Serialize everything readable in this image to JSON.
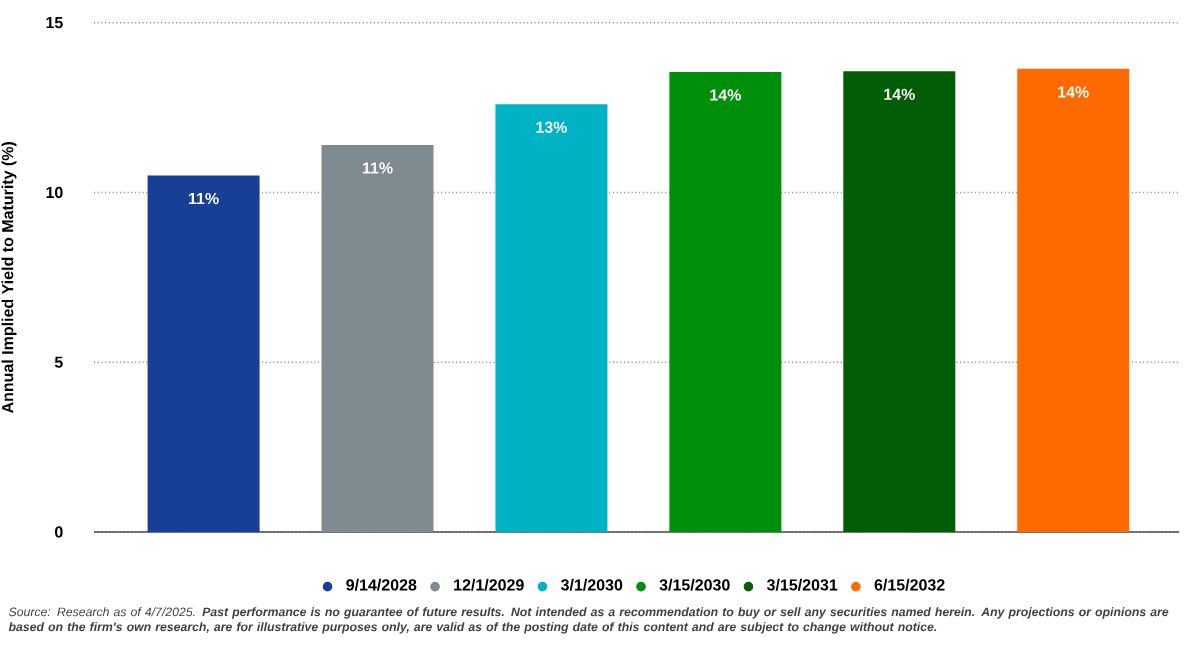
{
  "chart_data": {
    "type": "bar",
    "ylabel": "Annual Implied Yield to Maturity (%)",
    "categories": [
      null,
      null,
      null,
      null,
      null,
      null
    ],
    "series": [
      {
        "name": "9/14/2028",
        "color": "#173f95",
        "values": [
          10.5,
          null,
          null,
          null,
          null,
          null
        ],
        "value_labels": [
          "11%",
          null,
          null,
          null,
          null,
          null
        ]
      },
      {
        "name": "12/1/2029",
        "color": "#7f8a91",
        "values": [
          null,
          11.4,
          null,
          null,
          null,
          null
        ],
        "value_labels": [
          null,
          "11%",
          null,
          null,
          null,
          null
        ]
      },
      {
        "name": "3/1/2030",
        "color": "#00b3c4",
        "values": [
          null,
          null,
          12.6,
          null,
          null,
          null
        ],
        "value_labels": [
          null,
          null,
          "13%",
          null,
          null,
          null
        ]
      },
      {
        "name": "3/15/2030",
        "color": "#008f0a",
        "values": [
          null,
          null,
          null,
          13.55,
          null,
          null
        ],
        "value_labels": [
          null,
          null,
          null,
          "14%",
          null,
          null
        ]
      },
      {
        "name": "3/15/2031",
        "color": "#015d06",
        "values": [
          null,
          null,
          null,
          null,
          13.57,
          null
        ],
        "value_labels": [
          null,
          null,
          null,
          null,
          "14%",
          null
        ]
      },
      {
        "name": "6/15/2032",
        "color": "#ff6a00",
        "values": [
          null,
          null,
          null,
          null,
          null,
          13.64
        ],
        "value_labels": [
          null,
          null,
          null,
          null,
          null,
          "14%"
        ]
      }
    ],
    "ylim": [
      0,
      15
    ],
    "yticks": [
      0,
      5,
      10,
      15
    ],
    "grid": "y",
    "legend": "bottom",
    "marker": "circle",
    "annotations": [
      "Source: Research as of 4/7/2025.",
      "Past performance is no guarantee of future results. Not intended as a recommendation to buy or sell any securities named herein. Any projections or opinions are based on the firm's own research, are for illustrative purposes only, are valid as of the posting date of this content and are subject to change without notice."
    ]
  }
}
